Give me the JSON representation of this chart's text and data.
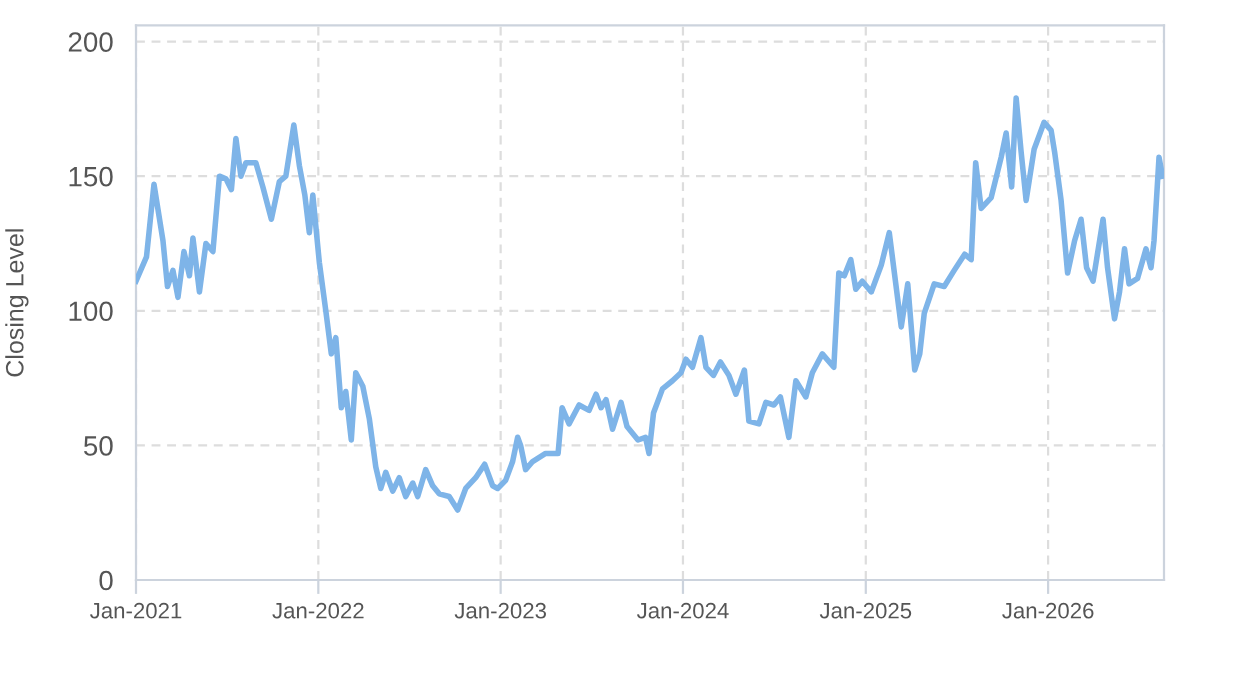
{
  "chart_data": {
    "type": "line",
    "ylabel": "Closing Level",
    "color": "#7eb4e8",
    "grid": true,
    "line_style": "solid",
    "marker": "none",
    "xlim": [
      "2021-01-01",
      "2026-08-21"
    ],
    "ylim": [
      0,
      206
    ],
    "xticks": [
      {
        "value": "2021-01-01",
        "label": "Jan-2021"
      },
      {
        "value": "2022-01-01",
        "label": "Jan-2022"
      },
      {
        "value": "2023-01-01",
        "label": "Jan-2023"
      },
      {
        "value": "2024-01-01",
        "label": "Jan-2024"
      },
      {
        "value": "2025-01-01",
        "label": "Jan-2025"
      },
      {
        "value": "2026-01-01",
        "label": "Jan-2026"
      }
    ],
    "yticks": [
      0,
      50,
      100,
      150,
      200
    ],
    "x": [
      "2021-01-01",
      "2021-01-22",
      "2021-02-06",
      "2021-02-24",
      "2021-03-05",
      "2021-03-16",
      "2021-03-26",
      "2021-04-07",
      "2021-04-18",
      "2021-04-25",
      "2021-05-08",
      "2021-05-21",
      "2021-06-04",
      "2021-06-17",
      "2021-06-30",
      "2021-07-11",
      "2021-07-20",
      "2021-07-30",
      "2021-08-09",
      "2021-08-29",
      "2021-09-12",
      "2021-09-29",
      "2021-10-15",
      "2021-10-28",
      "2021-11-13",
      "2021-11-24",
      "2021-12-05",
      "2021-12-14",
      "2021-12-21",
      "2022-01-03",
      "2022-01-16",
      "2022-01-27",
      "2022-02-05",
      "2022-02-16",
      "2022-02-25",
      "2022-03-08",
      "2022-03-17",
      "2022-03-31",
      "2022-04-13",
      "2022-04-26",
      "2022-05-06",
      "2022-05-16",
      "2022-05-30",
      "2022-06-12",
      "2022-06-25",
      "2022-07-09",
      "2022-07-19",
      "2022-08-04",
      "2022-08-18",
      "2022-08-31",
      "2022-09-20",
      "2022-10-07",
      "2022-10-23",
      "2022-11-12",
      "2022-11-30",
      "2022-12-16",
      "2022-12-26",
      "2023-01-11",
      "2023-01-25",
      "2023-02-04",
      "2023-02-10",
      "2023-02-20",
      "2023-03-06",
      "2023-04-01",
      "2023-04-26",
      "2023-05-04",
      "2023-05-18",
      "2023-06-07",
      "2023-06-27",
      "2023-07-11",
      "2023-07-21",
      "2023-07-31",
      "2023-08-13",
      "2023-08-30",
      "2023-09-11",
      "2023-10-03",
      "2023-10-18",
      "2023-10-25",
      "2023-11-03",
      "2023-11-21",
      "2023-12-11",
      "2023-12-28",
      "2024-01-07",
      "2024-01-20",
      "2024-02-06",
      "2024-02-16",
      "2024-03-02",
      "2024-03-16",
      "2024-04-02",
      "2024-04-16",
      "2024-05-03",
      "2024-05-12",
      "2024-06-01",
      "2024-06-15",
      "2024-07-01",
      "2024-07-14",
      "2024-07-31",
      "2024-08-14",
      "2024-09-03",
      "2024-09-16",
      "2024-10-06",
      "2024-10-29",
      "2024-11-08",
      "2024-11-19",
      "2024-12-02",
      "2024-12-12",
      "2024-12-25",
      "2025-01-12",
      "2025-02-01",
      "2025-02-17",
      "2025-02-28",
      "2025-03-13",
      "2025-03-26",
      "2025-04-09",
      "2025-04-19",
      "2025-04-28",
      "2025-05-18",
      "2025-06-07",
      "2025-06-27",
      "2025-07-18",
      "2025-07-31",
      "2025-08-09",
      "2025-08-20",
      "2025-09-09",
      "2025-09-29",
      "2025-10-09",
      "2025-10-20",
      "2025-10-29",
      "2025-11-08",
      "2025-11-18",
      "2025-12-04",
      "2025-12-24",
      "2026-01-07",
      "2026-01-14",
      "2026-01-27",
      "2026-02-09",
      "2026-02-23",
      "2026-03-08",
      "2026-03-19",
      "2026-04-01",
      "2026-04-21",
      "2026-04-30",
      "2026-05-14",
      "2026-05-24",
      "2026-06-03",
      "2026-06-12",
      "2026-06-29",
      "2026-07-16",
      "2026-07-26",
      "2026-08-01",
      "2026-08-11",
      "2026-08-18"
    ],
    "values": [
      111,
      120,
      147,
      126,
      109,
      115,
      105,
      122,
      113,
      127,
      107,
      125,
      122,
      150,
      149,
      145,
      164,
      150,
      155,
      155,
      146,
      134,
      148,
      150,
      169,
      154,
      143,
      129,
      143,
      118,
      100,
      84,
      90,
      64,
      70,
      52,
      77,
      72,
      60,
      42,
      34,
      40,
      33,
      38,
      31,
      36,
      31,
      41,
      35,
      32,
      31,
      26,
      34,
      38,
      43,
      35,
      34,
      37,
      44,
      53,
      50,
      41,
      44,
      47,
      47,
      64,
      58,
      65,
      63,
      69,
      64,
      67,
      56,
      66,
      57,
      52,
      53,
      47,
      62,
      71,
      74,
      77,
      82,
      79,
      90,
      79,
      76,
      81,
      76,
      69,
      78,
      59,
      58,
      66,
      65,
      68,
      53,
      74,
      68,
      77,
      84,
      79,
      114,
      113,
      119,
      108,
      111,
      107,
      117,
      129,
      113,
      94,
      110,
      78,
      84,
      99,
      110,
      109,
      115,
      121,
      119,
      155,
      138,
      142,
      157,
      166,
      146,
      179,
      159,
      141,
      160,
      170,
      167,
      159,
      141,
      114,
      126,
      134,
      116,
      111,
      134,
      116,
      97,
      107,
      123,
      110,
      112,
      123,
      116,
      126,
      157,
      150
    ]
  }
}
